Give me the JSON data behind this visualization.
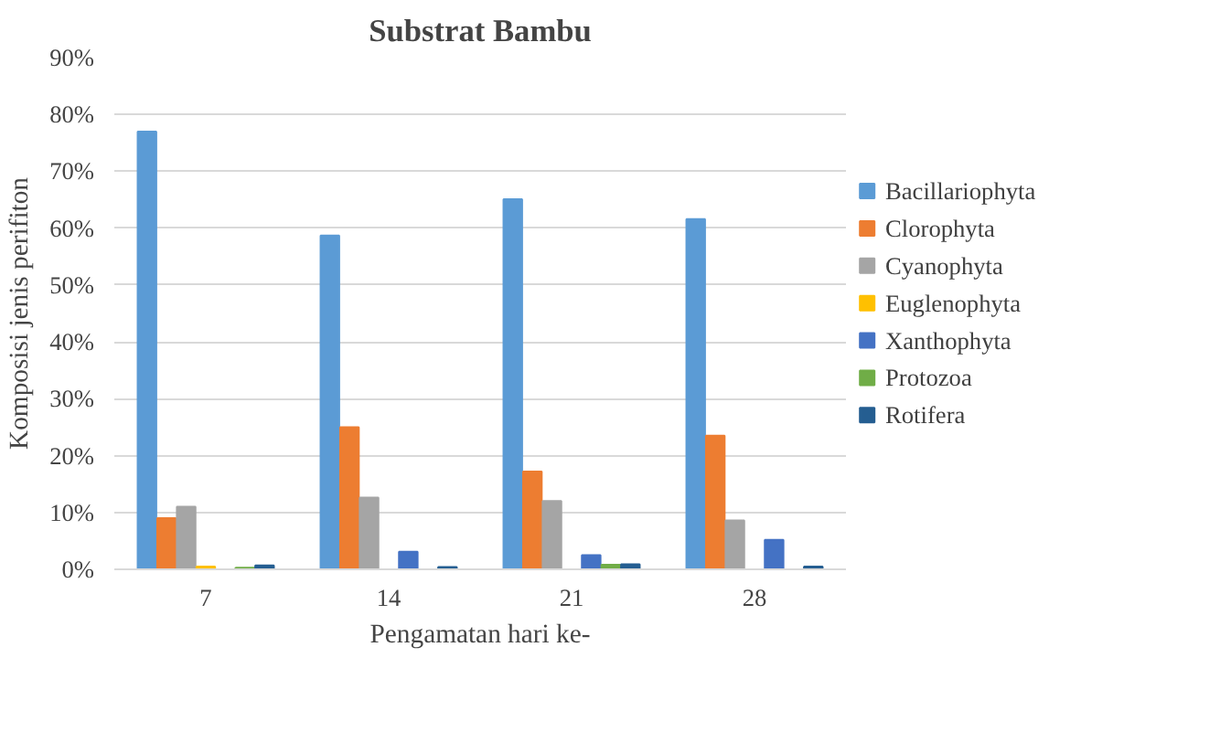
{
  "chart_data": {
    "type": "bar",
    "title": "Substrat Bambu",
    "xlabel": "Pengamatan hari ke-",
    "ylabel": "Komposisi jenis perifiton",
    "categories": [
      "7",
      "14",
      "21",
      "28"
    ],
    "series": [
      {
        "name": "Bacillariophyta",
        "color": "#5b9bd5",
        "values": [
          77,
          58.7,
          65.1,
          61.6
        ]
      },
      {
        "name": "Clorophyta",
        "color": "#ed7d31",
        "values": [
          9,
          25,
          17.2,
          23.5
        ]
      },
      {
        "name": "Cyanophyta",
        "color": "#a5a5a5",
        "values": [
          11,
          12.6,
          12,
          8.6
        ]
      },
      {
        "name": "Euglenophyta",
        "color": "#ffc000",
        "values": [
          0.5,
          0,
          0,
          0
        ]
      },
      {
        "name": "Xanthophyta",
        "color": "#4472c4",
        "values": [
          0,
          3.1,
          2.5,
          5.2
        ]
      },
      {
        "name": "Protozoa",
        "color": "#70ad47",
        "values": [
          0.3,
          0,
          0.8,
          0
        ]
      },
      {
        "name": "Rotifera",
        "color": "#255e91",
        "values": [
          0.7,
          0.4,
          0.9,
          0.5
        ]
      }
    ],
    "ylim": [
      0,
      90
    ],
    "yticks": [
      {
        "value": 0,
        "label": "0%"
      },
      {
        "value": 10,
        "label": "10%"
      },
      {
        "value": 20,
        "label": "20%"
      },
      {
        "value": 30,
        "label": "30%"
      },
      {
        "value": 40,
        "label": "40%"
      },
      {
        "value": 50,
        "label": "50%"
      },
      {
        "value": 60,
        "label": "60%"
      },
      {
        "value": 70,
        "label": "70%"
      },
      {
        "value": 80,
        "label": "80%"
      },
      {
        "value": 90,
        "label": "90%"
      }
    ],
    "grid": "y",
    "legend": "right"
  }
}
